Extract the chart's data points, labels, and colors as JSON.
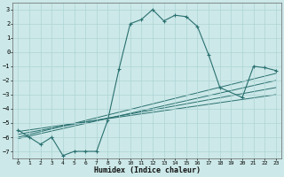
{
  "xlabel": "Humidex (Indice chaleur)",
  "xlim": [
    -0.5,
    23.5
  ],
  "ylim": [
    -7.5,
    3.5
  ],
  "yticks": [
    3,
    2,
    1,
    0,
    -1,
    -2,
    -3,
    -4,
    -5,
    -6,
    -7
  ],
  "xticks": [
    0,
    1,
    2,
    3,
    4,
    5,
    6,
    7,
    8,
    9,
    10,
    11,
    12,
    13,
    14,
    15,
    16,
    17,
    18,
    19,
    20,
    21,
    22,
    23
  ],
  "bg_color": "#cce8e8",
  "line_color": "#2a7070",
  "grid_color": "#aed4d4",
  "main_line_x": [
    0,
    1,
    2,
    3,
    4,
    5,
    6,
    7,
    8,
    9,
    10,
    11,
    12,
    13,
    14,
    15,
    16,
    17,
    18,
    20,
    21,
    22,
    23
  ],
  "main_line_y": [
    -5.5,
    -6.0,
    -6.5,
    -6.0,
    -7.3,
    -7.0,
    -7.0,
    -7.0,
    -4.8,
    -1.2,
    2.0,
    2.3,
    3.0,
    2.2,
    2.6,
    2.5,
    1.8,
    -0.2,
    -2.5,
    -3.2,
    -1.0,
    -1.1,
    -1.3
  ],
  "linear_lines": [
    {
      "x": [
        0,
        23
      ],
      "y": [
        -6.0,
        -1.5
      ]
    },
    {
      "x": [
        0,
        23
      ],
      "y": [
        -6.1,
        -2.0
      ]
    },
    {
      "x": [
        0,
        23
      ],
      "y": [
        -5.8,
        -2.5
      ]
    },
    {
      "x": [
        0,
        23
      ],
      "y": [
        -5.6,
        -3.0
      ]
    }
  ]
}
